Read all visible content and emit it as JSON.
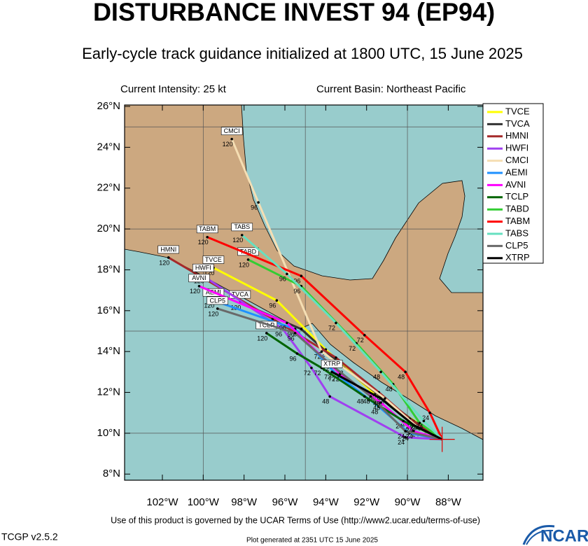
{
  "map": {
    "title": "DISTURBANCE INVEST 94 (EP94)",
    "subtitle": "Early-cycle track guidance initialized at 1800 UTC, 15 June 2025",
    "intensity": "Current Intensity: 25 kt",
    "basin": "Current Basin: Northeast Pacific",
    "terms": "Use of this product is governed by the UCAR Terms of Use (http://www2.ucar.edu/terms-of-use)",
    "version": "TCGP v2.5.2",
    "generated": "Plot generated at 2351 UTC   15 June 2025",
    "logo": "NCAR",
    "xlim": [
      -103.85,
      -86.3
    ],
    "ylim": [
      7.7,
      26.07
    ],
    "xticks": [
      {
        "value": -102,
        "label": "102°W"
      },
      {
        "value": -100,
        "label": "100°W"
      },
      {
        "value": -98,
        "label": "98°W"
      },
      {
        "value": -96,
        "label": "96°W"
      },
      {
        "value": -94,
        "label": "94°W"
      },
      {
        "value": -92,
        "label": "92°W"
      },
      {
        "value": -90,
        "label": "90°W"
      },
      {
        "value": -88,
        "label": "88°W"
      }
    ],
    "yticks": [
      {
        "value": 8,
        "label": "8°N"
      },
      {
        "value": 10,
        "label": "10°N"
      },
      {
        "value": 12,
        "label": "12°N"
      },
      {
        "value": 14,
        "label": "14°N"
      },
      {
        "value": 16,
        "label": "16°N"
      },
      {
        "value": 18,
        "label": "18°N"
      },
      {
        "value": 20,
        "label": "20°N"
      },
      {
        "value": 22,
        "label": "22°N"
      },
      {
        "value": 24,
        "label": "24°N"
      },
      {
        "value": 26,
        "label": "26°N"
      }
    ],
    "grid_lon": [
      -100,
      -95,
      -90
    ],
    "grid_lat": [
      10,
      15,
      20,
      25
    ],
    "initial": {
      "lon": -88.3,
      "lat": 9.7
    },
    "tracks": [
      {
        "name": "TVCE",
        "color": "#ffff00",
        "hours": [
          24,
          48,
          72,
          96,
          120
        ],
        "lon": [
          -89.5,
          -91.6,
          -94.0,
          -96.4,
          -99.5
        ],
        "lat": [
          10.5,
          11.9,
          14.1,
          16.5,
          18.1
        ]
      },
      {
        "name": "TVCA",
        "color": "#333333",
        "hours": [
          24,
          48,
          72,
          96,
          120
        ],
        "lon": [
          -89.7,
          -91.3,
          -93.1,
          -95.2,
          -98.2
        ],
        "lat": [
          10.6,
          11.8,
          13.2,
          15.1,
          16.4
        ]
      },
      {
        "name": "HMNI",
        "color": "#a52a2a",
        "hours": [
          24,
          48,
          72,
          96,
          120
        ],
        "lon": [
          -89.9,
          -91.4,
          -93.5,
          -96.6,
          -101.7
        ],
        "lat": [
          10.7,
          12.0,
          13.7,
          15.6,
          18.6
        ]
      },
      {
        "name": "HWFI",
        "color": "#a040f0",
        "hours": [
          24,
          48,
          72,
          96,
          120
        ],
        "lon": [
          -90.1,
          -93.8,
          -94.7,
          -96.1,
          -100.0
        ],
        "lat": [
          9.8,
          11.8,
          13.2,
          15.1,
          17.7
        ]
      },
      {
        "name": "CMCI",
        "color": "#f5deb3",
        "hours": [
          24,
          48,
          72,
          96,
          120
        ],
        "lon": [
          -89.4,
          -91.1,
          -94.2,
          -97.3,
          -98.6
        ],
        "lat": [
          10.2,
          11.7,
          14.0,
          21.3,
          24.4
        ]
      },
      {
        "name": "AEMI",
        "color": "#1e90ff",
        "hours": [
          24,
          48,
          72,
          96,
          120
        ],
        "lon": [
          -89.9,
          -91.4,
          -93.5,
          -95.5,
          -99.5
        ],
        "lat": [
          10.0,
          11.3,
          12.9,
          15.1,
          16.5
        ]
      },
      {
        "name": "AVNI",
        "color": "#ff00ff",
        "hours": [
          24,
          48,
          72,
          96,
          120
        ],
        "lon": [
          -89.7,
          -91.3,
          -93.3,
          -95.9,
          -100.2
        ],
        "lat": [
          10.1,
          11.5,
          12.9,
          15.4,
          17.2
        ]
      },
      {
        "name": "TCLP",
        "color": "#006400",
        "hours": [
          24,
          48,
          72,
          96,
          120
        ],
        "lon": [
          -90.2,
          -92.1,
          -94.2,
          -95.4,
          -96.9
        ],
        "lat": [
          10.6,
          11.8,
          13.2,
          13.9,
          14.9
        ]
      },
      {
        "name": "TABD",
        "color": "#32cd32",
        "hours": [
          24,
          48,
          72,
          96,
          120
        ],
        "lon": [
          -89.4,
          -90.7,
          -92.5,
          -95.2,
          -97.8
        ],
        "lat": [
          10.5,
          12.4,
          14.4,
          17.2,
          18.5
        ]
      },
      {
        "name": "TABM",
        "color": "#ff0000",
        "hours": [
          24,
          48,
          72,
          96,
          120
        ],
        "lon": [
          -88.9,
          -90.1,
          -92.1,
          -95.2,
          -99.8
        ],
        "lat": [
          11.0,
          13.0,
          14.8,
          17.7,
          19.6
        ]
      },
      {
        "name": "TABS",
        "color": "#66e0c0",
        "hours": [
          24,
          48,
          72,
          96,
          120
        ],
        "lon": [
          -89.2,
          -91.3,
          -93.5,
          -95.9,
          -98.1
        ],
        "lat": [
          10.6,
          13.0,
          15.4,
          17.8,
          19.7
        ]
      },
      {
        "name": "CLP5",
        "color": "#696969",
        "hours": [
          24,
          48,
          72,
          96,
          120
        ],
        "lon": [
          -90.1,
          -91.8,
          -93.8,
          -95.5,
          -99.3
        ],
        "lat": [
          10.1,
          11.8,
          13.4,
          14.9,
          16.1
        ]
      },
      {
        "name": "XTRP",
        "color": "#000000",
        "hours": [
          24,
          48,
          72
        ],
        "lon": [
          -89.7,
          -91.3,
          -93.7
        ],
        "lat": [
          10.4,
          11.7,
          13.0
        ]
      }
    ]
  }
}
